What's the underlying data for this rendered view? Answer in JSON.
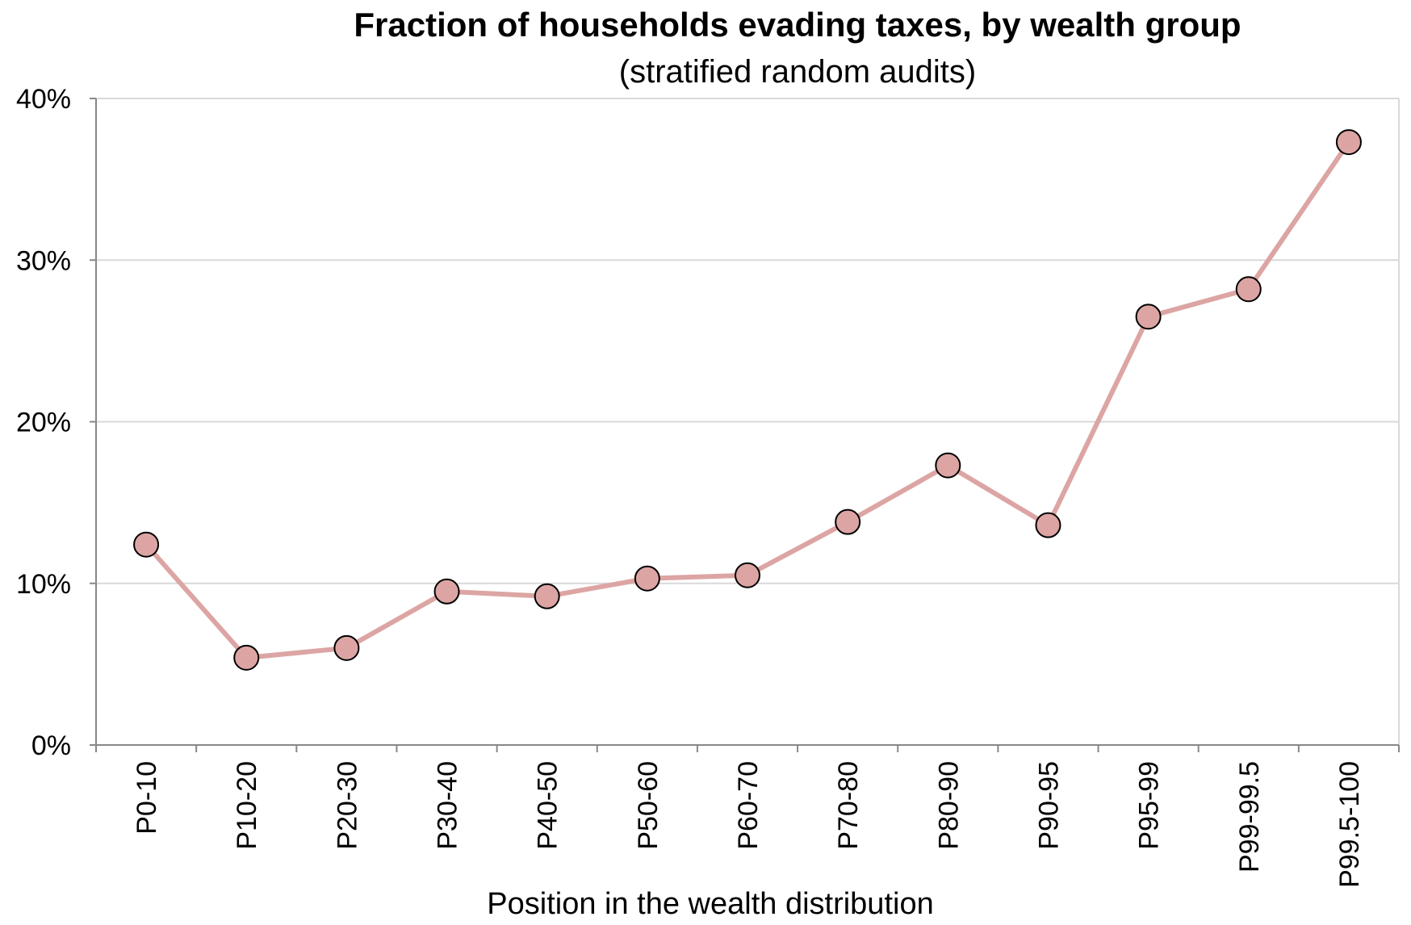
{
  "chart_data": {
    "type": "line",
    "title": "Fraction of households evading taxes, by wealth group",
    "subtitle": "(stratified random audits)",
    "xlabel": "Position in the wealth distribution",
    "ylabel": "",
    "categories": [
      "P0-10",
      "P10-20",
      "P20-30",
      "P30-40",
      "P40-50",
      "P50-60",
      "P60-70",
      "P70-80",
      "P80-90",
      "P90-95",
      "P95-99",
      "P99-99.5",
      "P99.5-100"
    ],
    "series": [
      {
        "values": [
          12.4,
          5.4,
          6.0,
          9.5,
          9.2,
          10.3,
          10.5,
          13.8,
          17.3,
          13.6,
          26.5,
          28.2,
          37.3
        ]
      }
    ],
    "ylim": [
      0,
      40
    ],
    "yticks": [
      0,
      10,
      20,
      30,
      40
    ],
    "ytick_labels": [
      "0%",
      "10%",
      "20%",
      "30%",
      "40%"
    ],
    "grid": true,
    "line_color": "#dca5a3",
    "marker_fill": "#dca5a3",
    "marker_stroke": "#000000"
  }
}
